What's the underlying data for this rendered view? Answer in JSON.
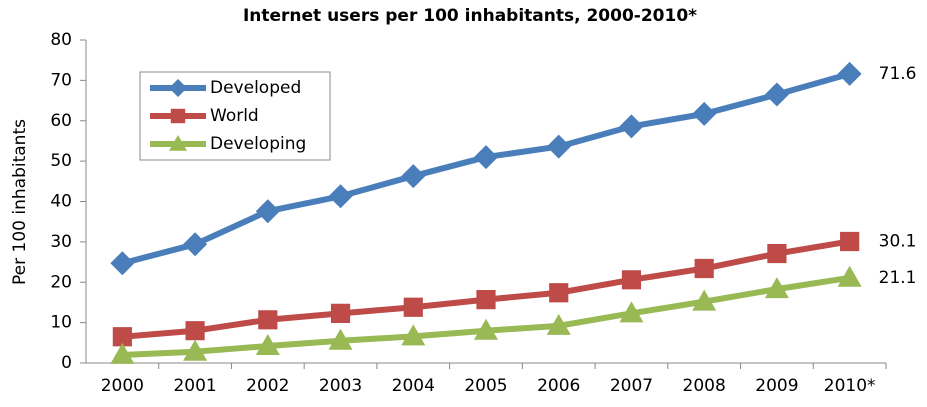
{
  "chart_data": {
    "type": "line",
    "title": "Internet users per 100 inhabitants, 2000-2010*",
    "ylabel": "Per 100 inhabitants",
    "categories": [
      "2000",
      "2001",
      "2002",
      "2003",
      "2004",
      "2005",
      "2006",
      "2007",
      "2008",
      "2009",
      "2010*"
    ],
    "series": [
      {
        "name": "Developed",
        "color": "#4a7ebb",
        "marker": "diamond",
        "values": [
          24.7,
          29.4,
          37.6,
          41.3,
          46.3,
          51,
          53.6,
          58.6,
          61.7,
          66.5,
          71.6
        ]
      },
      {
        "name": "World",
        "color": "#be4b48",
        "marker": "square",
        "values": [
          6.5,
          8,
          10.7,
          12.3,
          13.8,
          15.7,
          17.4,
          20.6,
          23.4,
          27.1,
          30.1
        ]
      },
      {
        "name": "Developing",
        "color": "#98b954",
        "marker": "triangle",
        "values": [
          2,
          2.8,
          4.2,
          5.5,
          6.6,
          8,
          9.2,
          12.3,
          15.2,
          18.3,
          21.1
        ]
      }
    ],
    "ylim": [
      0,
      80
    ],
    "yticks": [
      0,
      10,
      20,
      30,
      40,
      50,
      60,
      70,
      80
    ],
    "grid": false,
    "legend": "upper left"
  }
}
